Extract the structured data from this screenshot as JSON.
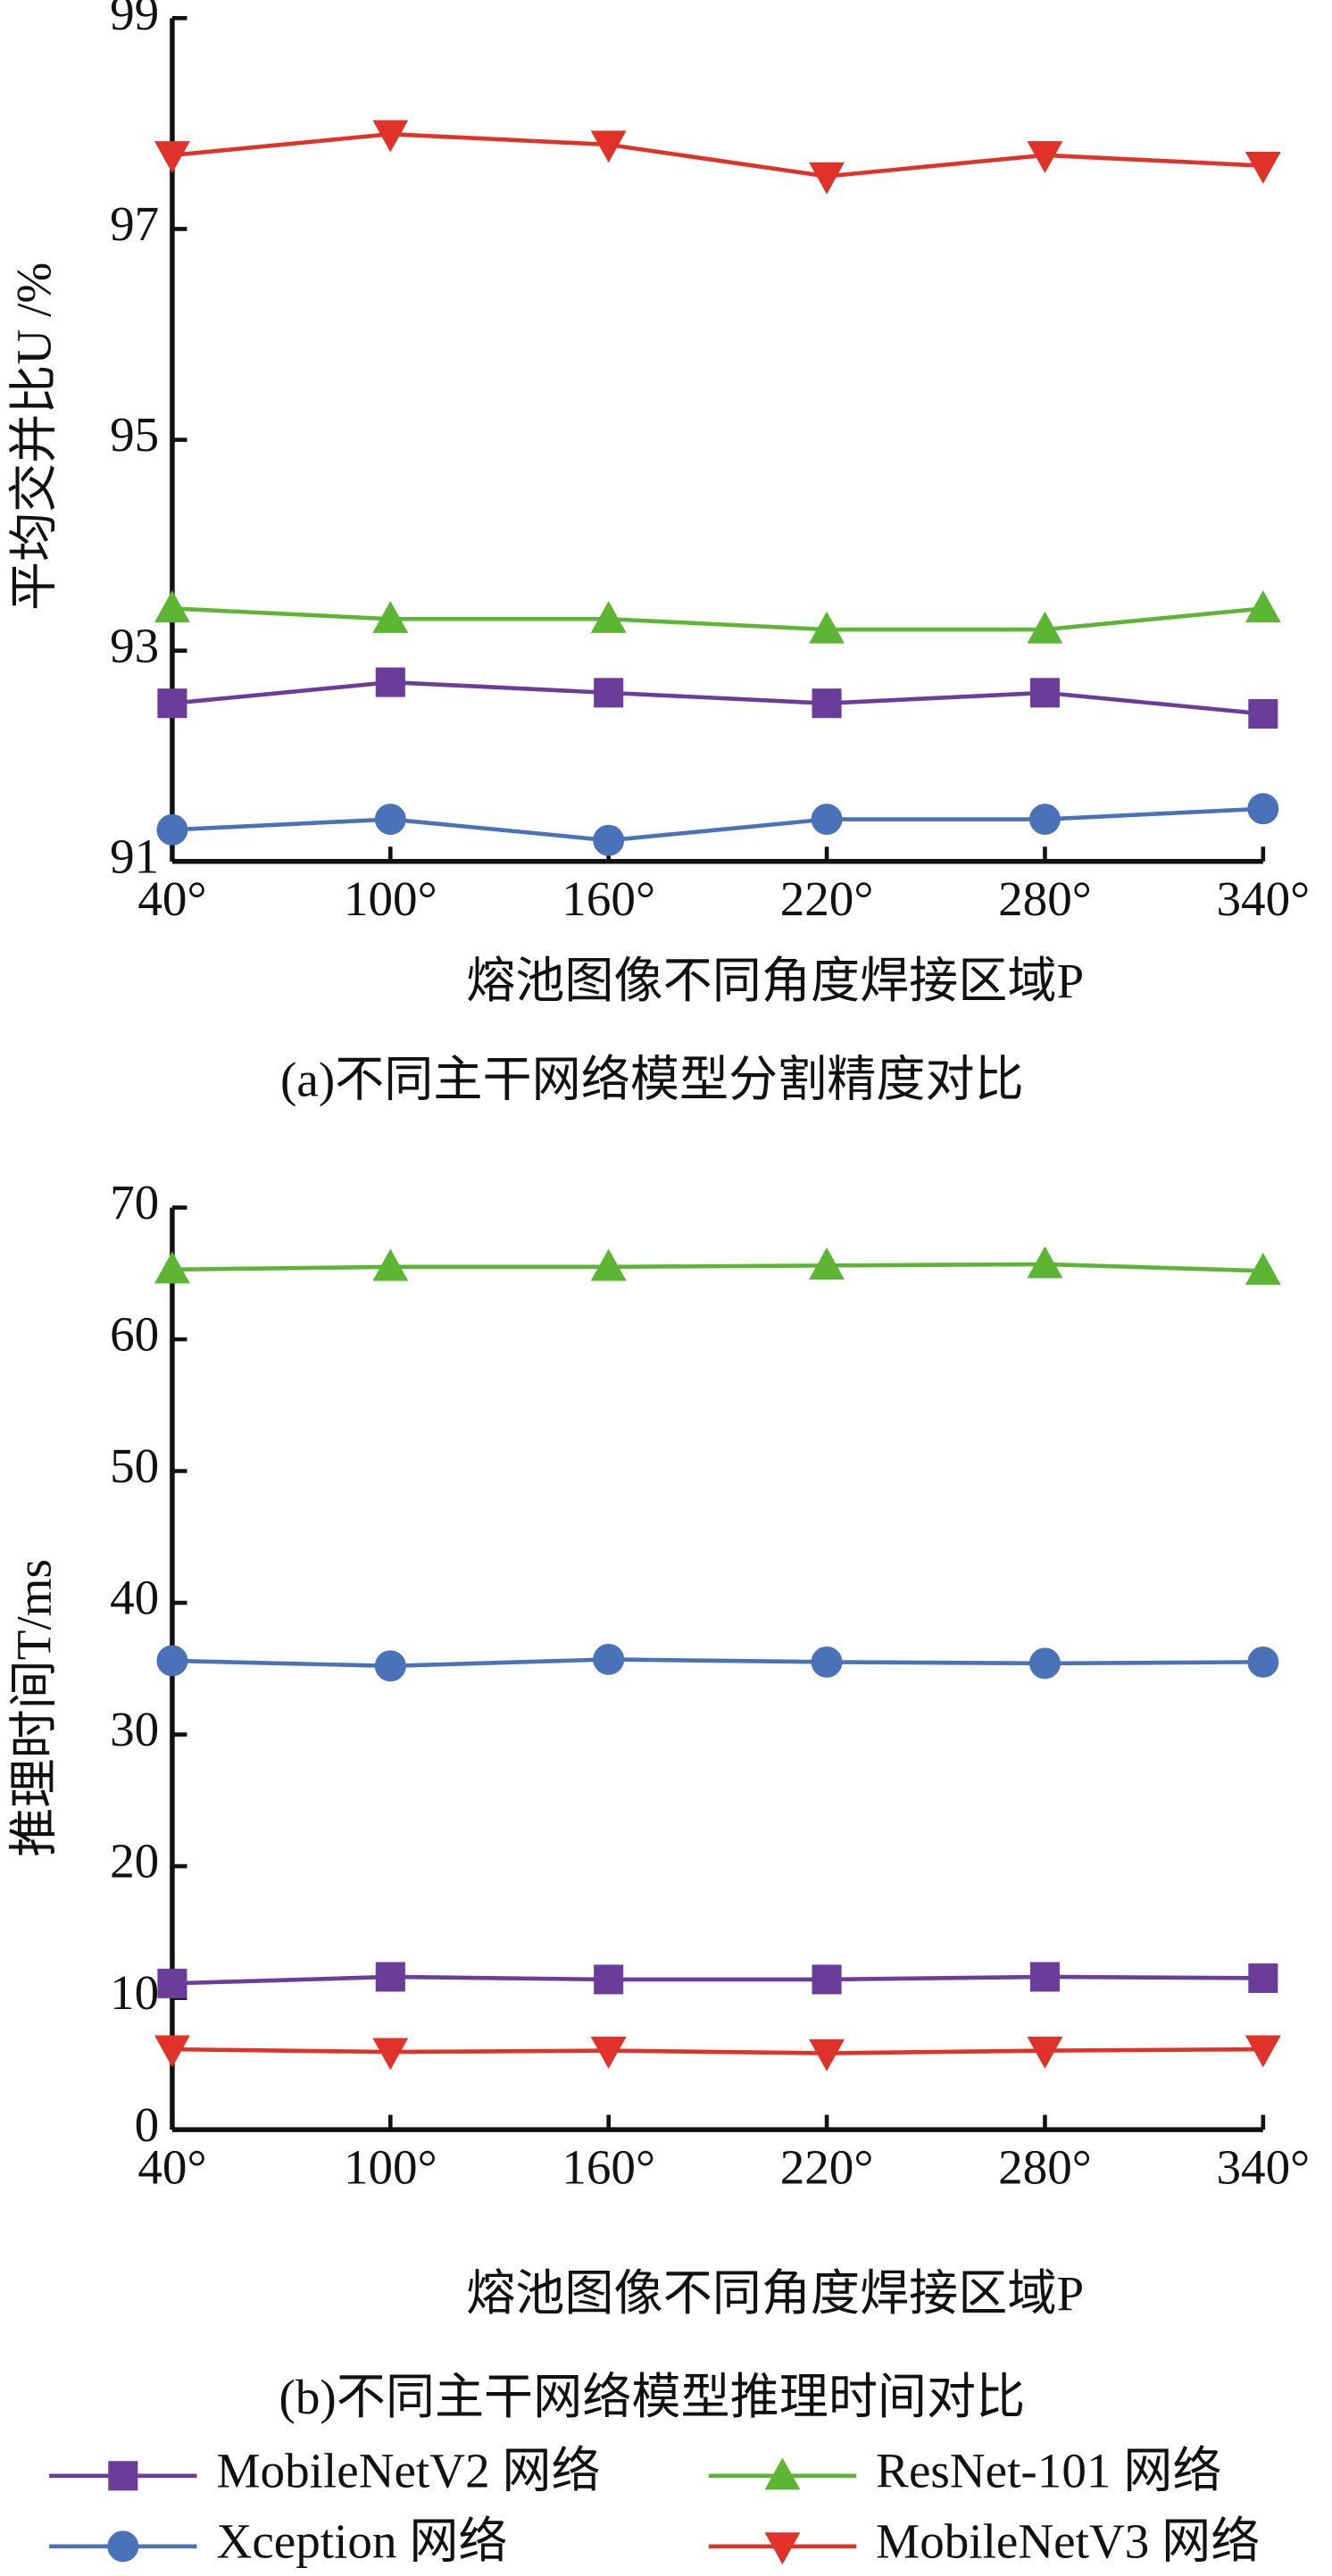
{
  "chart_data": [
    {
      "type": "line",
      "caption": "(a)不同主干网络模型分割精度对比",
      "x_label": "熔池图像不同角度焊接区域P",
      "y_label": "平均交并比U /%",
      "categories": [
        "40°",
        "100°",
        "160°",
        "220°",
        "280°",
        "340°"
      ],
      "ylim": [
        91,
        99
      ],
      "yticks": [
        91,
        93,
        95,
        97,
        99
      ],
      "series": [
        {
          "name": "MobileNetV2 网络",
          "color": "#6a3d9a",
          "marker": "square",
          "values": [
            92.5,
            92.7,
            92.6,
            92.5,
            92.6,
            92.4
          ]
        },
        {
          "name": "ResNet-101 网络",
          "color": "#5cb533",
          "marker": "triangle-up",
          "values": [
            93.4,
            93.3,
            93.3,
            93.2,
            93.2,
            93.4
          ]
        },
        {
          "name": "Xception 网络",
          "color": "#4a72b8",
          "marker": "circle",
          "values": [
            91.3,
            91.4,
            91.2,
            91.4,
            91.4,
            91.5
          ]
        },
        {
          "name": "MobileNetV3 网络",
          "color": "#e03228",
          "marker": "triangle-down",
          "values": [
            97.7,
            97.9,
            97.8,
            97.5,
            97.7,
            97.6
          ]
        }
      ]
    },
    {
      "type": "line",
      "caption": "(b)不同主干网络模型推理时间对比",
      "x_label": "熔池图像不同角度焊接区域P",
      "y_label": "推理时间T/ms",
      "categories": [
        "40°",
        "100°",
        "160°",
        "220°",
        "280°",
        "340°"
      ],
      "ylim": [
        0,
        70
      ],
      "yticks": [
        0,
        10,
        20,
        30,
        40,
        50,
        60,
        70
      ],
      "series": [
        {
          "name": "MobileNetV2 网络",
          "color": "#6a3d9a",
          "marker": "square",
          "values": [
            11.1,
            11.6,
            11.4,
            11.4,
            11.6,
            11.5
          ]
        },
        {
          "name": "ResNet-101 网络",
          "color": "#5cb533",
          "marker": "triangle-up",
          "values": [
            65.3,
            65.5,
            65.5,
            65.6,
            65.7,
            65.2
          ]
        },
        {
          "name": "Xception 网络",
          "color": "#4a72b8",
          "marker": "circle",
          "values": [
            35.6,
            35.2,
            35.7,
            35.5,
            35.4,
            35.5
          ]
        },
        {
          "name": "MobileNetV3 网络",
          "color": "#e03228",
          "marker": "triangle-down",
          "values": [
            6.1,
            5.9,
            6.0,
            5.8,
            6.0,
            6.1
          ]
        }
      ]
    }
  ]
}
